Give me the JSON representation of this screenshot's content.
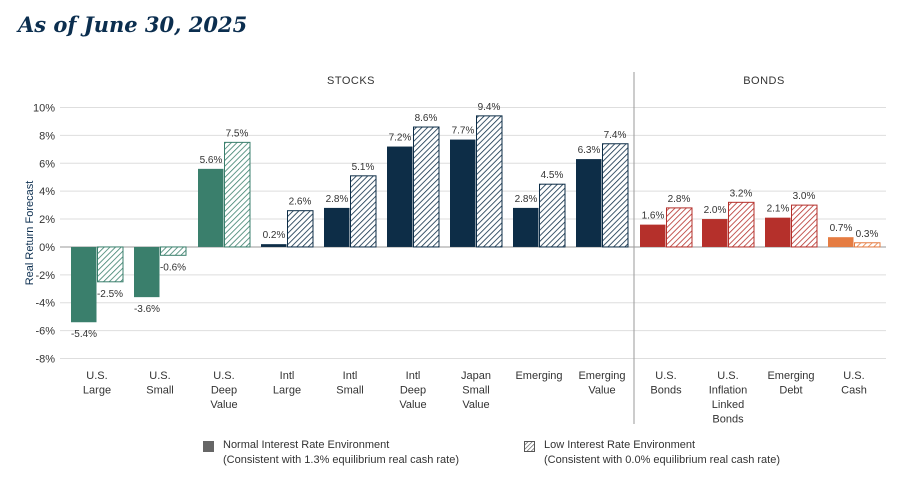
{
  "header": {
    "as_of": "As of June 30, 2025"
  },
  "legend": {
    "normal_line1": "Normal Interest Rate Environment",
    "normal_line2": "(Consistent with 1.3% equilibrium real cash rate)",
    "low_line1": "Low Interest Rate Environment",
    "low_line2": "(Consistent with 0.0% equilibrium real cash rate)"
  },
  "colors": {
    "stocks_green": "#3a7f6c",
    "stocks_navy": "#0d2d47",
    "bonds_red": "#b5302b",
    "cash_orange": "#e57c42",
    "legend_gray": "#666666"
  },
  "chart_data": {
    "type": "bar",
    "ylabel": "Real Return Forecast",
    "ylim": [
      -8,
      10
    ],
    "yticks": [
      10,
      8,
      6,
      4,
      2,
      0,
      -2,
      -4,
      -6,
      -8
    ],
    "ytick_labels": [
      "10%",
      "8%",
      "6%",
      "4%",
      "2%",
      "0%",
      "-2%",
      "-4%",
      "-6%",
      "-8%"
    ],
    "grid": true,
    "groups": [
      {
        "label": "STOCKS",
        "categories": 9
      },
      {
        "label": "BONDS",
        "categories": 4
      }
    ],
    "categories": [
      [
        "U.S.",
        "Large"
      ],
      [
        "U.S.",
        "Small"
      ],
      [
        "U.S.",
        "Deep",
        "Value"
      ],
      [
        "Intl",
        "Large"
      ],
      [
        "Intl",
        "Small"
      ],
      [
        "Intl",
        "Deep",
        "Value"
      ],
      [
        "Japan",
        "Small",
        "Value"
      ],
      [
        "Emerging"
      ],
      [
        "Emerging",
        "Value"
      ],
      [
        "U.S.",
        "Bonds"
      ],
      [
        "U.S.",
        "Inflation",
        "Linked",
        "Bonds"
      ],
      [
        "Emerging",
        "Debt"
      ],
      [
        "U.S.",
        "Cash"
      ]
    ],
    "color_keys": [
      "stocks_green",
      "stocks_green",
      "stocks_green",
      "stocks_navy",
      "stocks_navy",
      "stocks_navy",
      "stocks_navy",
      "stocks_navy",
      "stocks_navy",
      "bonds_red",
      "bonds_red",
      "bonds_red",
      "cash_orange"
    ],
    "series": [
      {
        "name": "Normal Interest Rate Environment",
        "values": [
          -5.4,
          -3.6,
          5.6,
          0.2,
          2.8,
          7.2,
          7.7,
          2.8,
          6.3,
          1.6,
          2.0,
          2.1,
          0.7
        ]
      },
      {
        "name": "Low Interest Rate Environment",
        "values": [
          -2.5,
          -0.6,
          7.5,
          2.6,
          5.1,
          8.6,
          9.4,
          4.5,
          7.4,
          2.8,
          3.2,
          3.0,
          0.3
        ]
      }
    ],
    "data_labels": [
      [
        "-5.4%",
        "-3.6%",
        "5.6%",
        "0.2%",
        "2.8%",
        "7.2%",
        "7.7%",
        "2.8%",
        "6.3%",
        "1.6%",
        "2.0%",
        "2.1%",
        "0.7%"
      ],
      [
        "-2.5%",
        "-0.6%",
        "7.5%",
        "2.6%",
        "5.1%",
        "8.6%",
        "9.4%",
        "4.5%",
        "7.4%",
        "2.8%",
        "3.2%",
        "3.0%",
        "0.3%"
      ]
    ]
  }
}
